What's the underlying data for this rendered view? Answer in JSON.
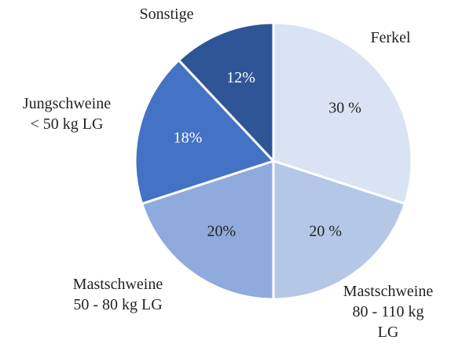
{
  "chart_data": {
    "type": "pie",
    "categories": [
      "Ferkel",
      "Mastschweine\n80 - 110 kg LG",
      "Mastschweine\n50 - 80 kg LG",
      "Jungschweine\n< 50 kg LG",
      "Sonstige"
    ],
    "values": [
      30,
      20,
      20,
      18,
      12
    ],
    "value_labels": [
      "30 %",
      "20 %",
      "20%",
      "18%",
      "12%"
    ],
    "colors": [
      "#dae3f3",
      "#b4c7e7",
      "#8faadc",
      "#4472c4",
      "#2f5597"
    ]
  }
}
